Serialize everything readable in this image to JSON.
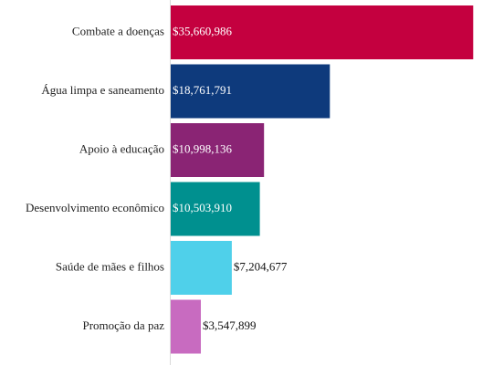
{
  "chart_data": {
    "type": "bar",
    "orientation": "horizontal",
    "categories": [
      "Combate a doenças",
      "Água limpa e saneamento",
      "Apoio à educação",
      "Desenvolvimento econômico",
      "Saúde de mães e filhos",
      "Promoção da paz"
    ],
    "values": [
      35660986,
      18761791,
      10998136,
      10503910,
      7204677,
      3547899
    ],
    "value_labels": [
      "$35,660,986",
      "$18,761,791",
      "$10,998,136",
      "$10,503,910",
      "$7,204,677",
      "$3,547,899"
    ],
    "colors": [
      "#c4003f",
      "#0e3a7c",
      "#8a2474",
      "#00908f",
      "#4fd0ea",
      "#c86bc0"
    ],
    "title": "",
    "xlabel": "",
    "ylabel": "",
    "xlim": [
      0,
      38000000
    ],
    "grid": false,
    "legend": "none"
  }
}
